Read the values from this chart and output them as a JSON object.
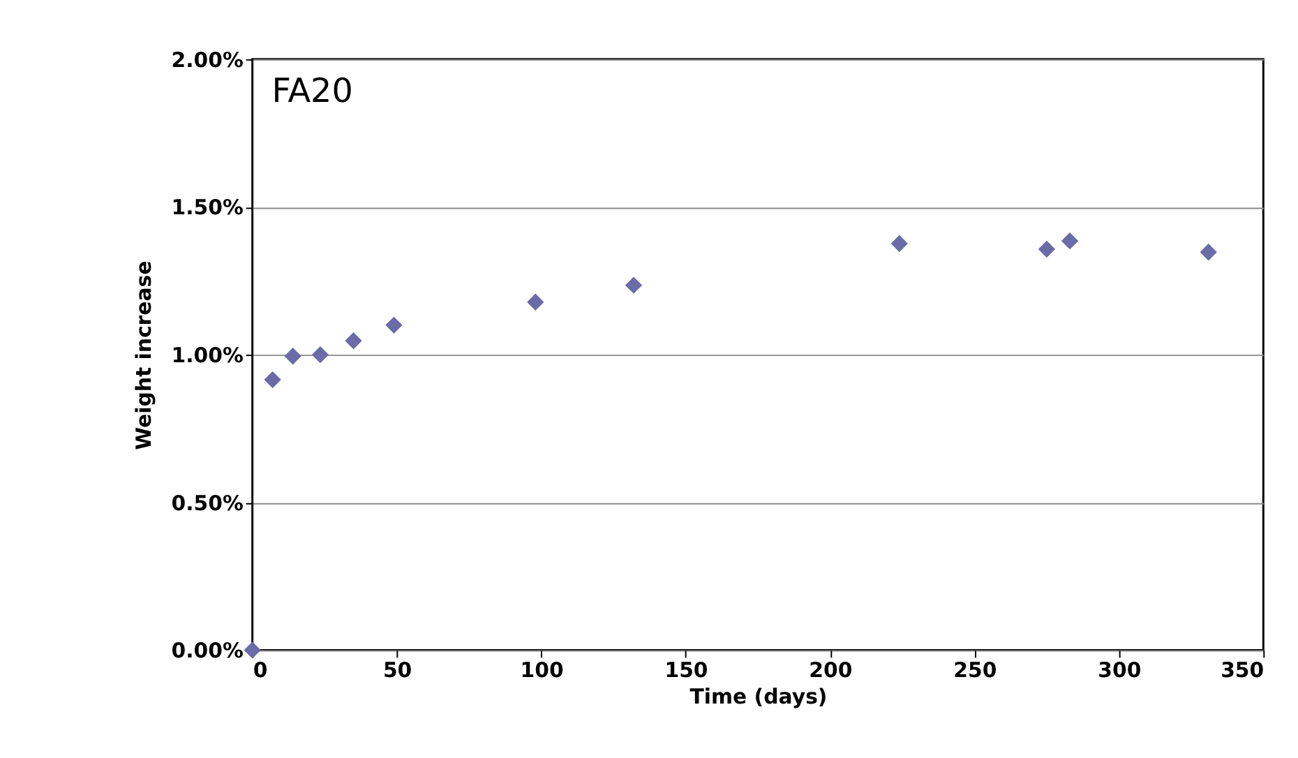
{
  "chart_data": {
    "type": "scatter",
    "xlabel": "Time (days)",
    "ylabel": "Weight increase",
    "annotations": [
      "FA20"
    ],
    "x": [
      0,
      7,
      14,
      23.5,
      35,
      49,
      98,
      132,
      224,
      275,
      283,
      331
    ],
    "series": [
      {
        "color": "#6b6ba8",
        "values": [
          0,
          0.915,
          0.995,
          1.0,
          1.047,
          1.1,
          1.178,
          1.235,
          1.376,
          1.357,
          1.385,
          1.347
        ]
      }
    ],
    "xlim": [
      0,
      350
    ],
    "xticks": [
      0,
      50,
      100,
      150,
      200,
      250,
      300,
      350
    ],
    "ylim": [
      0,
      2
    ],
    "yticks": [
      {
        "value": 0,
        "label": "0.00%"
      },
      {
        "value": 0.5,
        "label": "0.50%"
      },
      {
        "value": 1,
        "label": "1.00%"
      },
      {
        "value": 1.5,
        "label": "1.50%"
      },
      {
        "value": 2,
        "label": "2.00%"
      }
    ],
    "grid": "y",
    "marker": "diamond"
  }
}
